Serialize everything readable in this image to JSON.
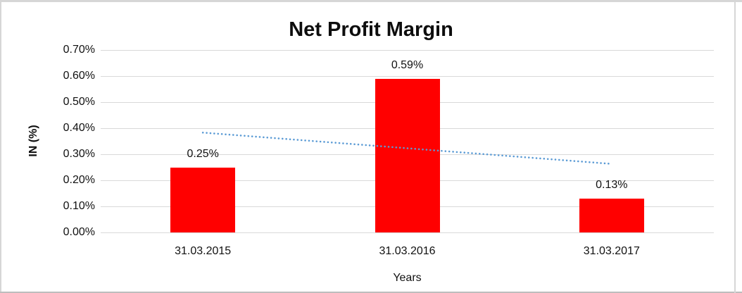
{
  "chart_data": {
    "type": "bar",
    "title": "Net Profit Margin",
    "xlabel": "Years",
    "ylabel": "IN (%)",
    "categories": [
      "31.03.2015",
      "31.03.2016",
      "31.03.2017"
    ],
    "values": [
      0.25,
      0.59,
      0.13
    ],
    "data_labels": [
      "0.25%",
      "0.59%",
      "0.13%"
    ],
    "y_ticks": [
      "0.70%",
      "0.60%",
      "0.50%",
      "0.40%",
      "0.30%",
      "0.20%",
      "0.10%",
      "0.00%"
    ],
    "ylim": [
      0,
      0.7
    ],
    "unit": "%",
    "grid": true,
    "legend": false,
    "bar_color": "#ff0000",
    "gridline_color": "#d9d9d9",
    "trendline": {
      "type": "linear",
      "style": "dotted",
      "color": "#5b9bd5",
      "start_value": 0.383,
      "end_value": 0.263
    }
  }
}
